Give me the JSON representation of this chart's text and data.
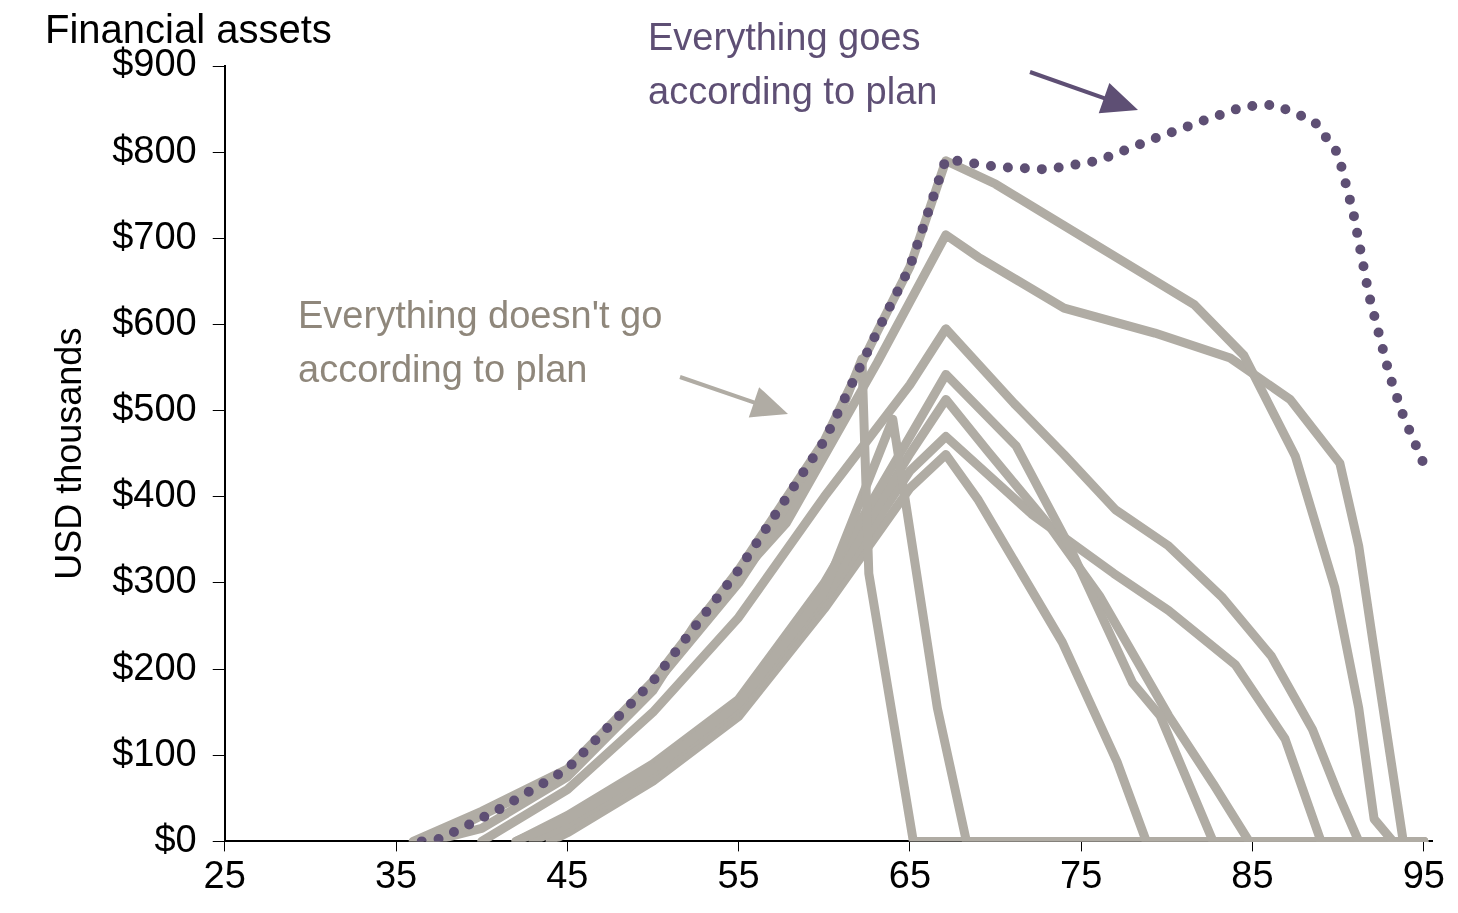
{
  "chart_data": {
    "type": "line",
    "title": "Financial assets",
    "ylabel": "USD thousands",
    "xlim": [
      25,
      95.5
    ],
    "ylim": [
      0,
      900
    ],
    "xticks": [
      25,
      35,
      45,
      55,
      65,
      75,
      85,
      95
    ],
    "yticks": [
      {
        "value": 0,
        "label": "$0"
      },
      {
        "value": 100,
        "label": "$100"
      },
      {
        "value": 200,
        "label": "$200"
      },
      {
        "value": 300,
        "label": "$300"
      },
      {
        "value": 400,
        "label": "$400"
      },
      {
        "value": 500,
        "label": "$500"
      },
      {
        "value": 600,
        "label": "$600"
      },
      {
        "value": 700,
        "label": "$700"
      },
      {
        "value": 800,
        "label": "$800"
      },
      {
        "value": 900,
        "label": "$900"
      }
    ],
    "grid": false,
    "legend": false,
    "marker": "none",
    "annotations": [
      "Everything goes according to plan",
      "Everything doesn't go according to plan"
    ],
    "series": [
      {
        "color": "#b0aca4",
        "line_style": "solid",
        "x": [
          36,
          40,
          45,
          50,
          55,
          60,
          63,
          65,
          67.1,
          70,
          75.8,
          81.6,
          84.5,
          87.5,
          89.8,
          91.2,
          92.1,
          93.2,
          95
        ],
        "values": [
          0,
          35,
          84,
          186,
          315,
          465,
          588,
          667,
          790,
          763,
          693,
          623,
          564,
          447,
          295,
          155,
          26,
          0,
          0
        ]
      },
      {
        "color": "#b0aca4",
        "line_style": "solid",
        "x": [
          37,
          40,
          45,
          50,
          52.5,
          57.8,
          63.1,
          67.1,
          69,
          74,
          79.3,
          83.7,
          87.2,
          90.1,
          91.2,
          92,
          93.8,
          95
        ],
        "values": [
          0,
          15,
          75,
          175,
          253,
          370,
          556,
          704,
          678,
          619,
          590,
          561,
          513,
          439,
          343,
          236,
          0,
          0
        ]
      },
      {
        "color": "#b0aca4",
        "line_style": "solid",
        "x": [
          37,
          40,
          45,
          50,
          55,
          60,
          62.2,
          62.6,
          65.2,
          95
        ],
        "values": [
          0,
          30,
          80,
          180,
          300,
          450,
          560,
          311,
          0,
          0
        ]
      },
      {
        "color": "#b0aca4",
        "line_style": "solid",
        "x": [
          42,
          45,
          50,
          55,
          60,
          64,
          66.6,
          68.3,
          95
        ],
        "values": [
          0,
          26,
          84,
          160,
          290,
          490,
          155,
          0,
          0
        ]
      },
      {
        "color": "#b0aca4",
        "line_style": "solid",
        "x": [
          40,
          45,
          50,
          55,
          60,
          65,
          67.1,
          71.1,
          74,
          77,
          80.1,
          83.2,
          86.1,
          88.5,
          90,
          91.2,
          95
        ],
        "values": [
          0,
          60,
          150,
          260,
          400,
          530,
          595,
          508,
          449,
          385,
          343,
          284,
          215,
          130,
          55,
          0,
          0
        ]
      },
      {
        "color": "#b0aca4",
        "line_style": "solid",
        "x": [
          42,
          45,
          50,
          55,
          60,
          65,
          67.1,
          71.2,
          74.3,
          78,
          79.6,
          82.7,
          95
        ],
        "values": [
          0,
          30,
          90,
          165,
          300,
          470,
          542,
          459,
          343,
          184,
          146,
          0,
          0
        ]
      },
      {
        "color": "#b0aca4",
        "line_style": "solid",
        "x": [
          43,
          45,
          50,
          55,
          60,
          65,
          67.1,
          69.5,
          73,
          76.1,
          80.1,
          82.7,
          84.8,
          95
        ],
        "values": [
          0,
          20,
          80,
          155,
          285,
          450,
          513,
          454,
          370,
          284,
          146,
          67,
          0,
          0
        ]
      },
      {
        "color": "#b0aca4",
        "line_style": "solid",
        "x": [
          44,
          45,
          50,
          55,
          60,
          65,
          67.1,
          72.1,
          76.9,
          80.1,
          84,
          86.9,
          89,
          95
        ],
        "values": [
          0,
          15,
          75,
          150,
          280,
          430,
          470,
          380,
          311,
          268,
          205,
          119,
          0,
          0
        ]
      },
      {
        "color": "#b0aca4",
        "line_style": "solid",
        "x": [
          44,
          45,
          50,
          55,
          60,
          65,
          67.1,
          69,
          73.9,
          77.1,
          78.8,
          95
        ],
        "values": [
          0,
          10,
          70,
          145,
          270,
          410,
          449,
          396,
          231,
          92,
          0,
          0
        ]
      },
      {
        "color": "#5e4f74",
        "line_style": "dotted",
        "x": [
          36.5,
          37.6,
          41,
          45,
          50,
          55,
          60,
          63,
          65,
          67.1,
          70,
          73,
          76,
          79.3,
          82.2,
          84.5,
          86.3,
          88.6,
          90,
          90.9,
          91.8,
          93,
          93.8,
          95
        ],
        "values": [
          0,
          3,
          37,
          84,
          186,
          315,
          465,
          588,
          667,
          792,
          783,
          780,
          790,
          816,
          837,
          853,
          855,
          836,
          798,
          728,
          634,
          541,
          494,
          438
        ]
      }
    ]
  }
}
